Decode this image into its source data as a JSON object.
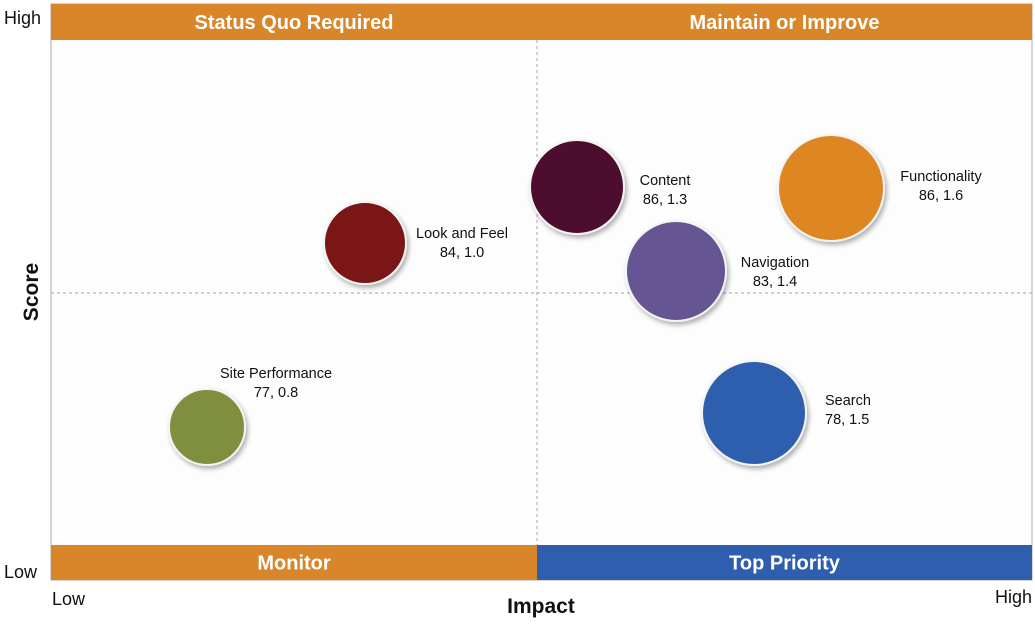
{
  "chart_data": {
    "type": "scatter",
    "subtype": "bubble-quadrant",
    "xlabel": "Impact",
    "ylabel": "Score",
    "x_ticks": [
      "Low",
      "High"
    ],
    "y_ticks": [
      "High",
      "Low"
    ],
    "quadrants": [
      {
        "label": "Status Quo Required",
        "position": "top-left",
        "color": "#d9862a"
      },
      {
        "label": "Maintain or Improve",
        "position": "top-right",
        "color": "#d9862a"
      },
      {
        "label": "Monitor",
        "position": "bottom-left",
        "color": "#d9862a"
      },
      {
        "label": "Top Priority",
        "position": "bottom-right",
        "color": "#2f5eae"
      }
    ],
    "series": [
      {
        "name": "Look and Feel",
        "score": 84,
        "impact": 1.0,
        "value_label": "84, 1.0",
        "color": "#7a1214"
      },
      {
        "name": "Site Performance",
        "score": 77,
        "impact": 0.8,
        "value_label": "77, 0.8",
        "color": "#7f8f3c"
      },
      {
        "name": "Content",
        "score": 86,
        "impact": 1.3,
        "value_label": "86, 1.3",
        "color": "#4d0f2e"
      },
      {
        "name": "Navigation",
        "score": 83,
        "impact": 1.4,
        "value_label": "83, 1.4",
        "color": "#655592"
      },
      {
        "name": "Functionality",
        "score": 86,
        "impact": 1.6,
        "value_label": "86, 1.6",
        "color": "#de8624"
      },
      {
        "name": "Search",
        "score": 78,
        "impact": 1.5,
        "value_label": "78, 1.5",
        "color": "#2f5eae"
      }
    ]
  }
}
